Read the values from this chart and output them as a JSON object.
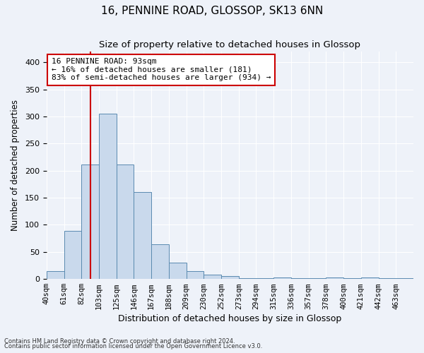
{
  "title1": "16, PENNINE ROAD, GLOSSOP, SK13 6NN",
  "title2": "Size of property relative to detached houses in Glossop",
  "xlabel": "Distribution of detached houses by size in Glossop",
  "ylabel": "Number of detached properties",
  "footnote1": "Contains HM Land Registry data © Crown copyright and database right 2024.",
  "footnote2": "Contains public sector information licensed under the Open Government Licence v3.0.",
  "bin_labels": [
    "40sqm",
    "61sqm",
    "82sqm",
    "103sqm",
    "125sqm",
    "146sqm",
    "167sqm",
    "188sqm",
    "209sqm",
    "230sqm",
    "252sqm",
    "273sqm",
    "294sqm",
    "315sqm",
    "336sqm",
    "357sqm",
    "378sqm",
    "400sqm",
    "421sqm",
    "442sqm",
    "463sqm"
  ],
  "bar_values": [
    14,
    89,
    211,
    305,
    212,
    160,
    64,
    30,
    15,
    8,
    5,
    2,
    1,
    3,
    1,
    2,
    3,
    1,
    3,
    1,
    2
  ],
  "bar_color": "#c9d9ec",
  "bar_edge_color": "#5a8ab0",
  "annotation_text": "16 PENNINE ROAD: 93sqm\n← 16% of detached houses are smaller (181)\n83% of semi-detached houses are larger (934) →",
  "vline_x": 93,
  "vline_color": "#cc0000",
  "box_edge_color": "#cc0000",
  "ylim": [
    0,
    420
  ],
  "xlim_start": 40,
  "xlim_end": 481,
  "bin_width": 21,
  "background_color": "#eef2f9",
  "grid_color": "#ffffff",
  "title1_fontsize": 11,
  "title2_fontsize": 9.5,
  "ylabel_fontsize": 8.5,
  "xlabel_fontsize": 9,
  "tick_fontsize": 7.5,
  "ytick_fontsize": 8,
  "annot_fontsize": 8,
  "footnote_fontsize": 6
}
